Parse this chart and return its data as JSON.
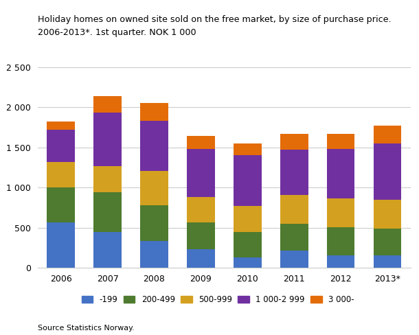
{
  "years": [
    "2006",
    "2007",
    "2008",
    "2009",
    "2010",
    "2011",
    "2012",
    "2013*"
  ],
  "series": {
    "-199": [
      570,
      450,
      340,
      230,
      130,
      220,
      160,
      160
    ],
    "200-499": [
      430,
      490,
      440,
      340,
      320,
      330,
      350,
      330
    ],
    "500-999": [
      320,
      330,
      430,
      310,
      320,
      360,
      360,
      360
    ],
    "1 000-2 999": [
      400,
      660,
      620,
      600,
      630,
      560,
      610,
      700
    ],
    "3 000-": [
      100,
      210,
      220,
      160,
      150,
      200,
      185,
      220
    ]
  },
  "colors": {
    "-199": "#4472C4",
    "200-499": "#4E7B2F",
    "500-999": "#D4A020",
    "1 000-2 999": "#7030A0",
    "3 000-": "#E36C09"
  },
  "title_line1": "Holiday homes on owned site sold on the free market, by size of purchase price.",
  "title_line2": "2006-2013*. 1st quarter. NOK 1 000",
  "ylim": [
    0,
    2500
  ],
  "yticks": [
    0,
    500,
    1000,
    1500,
    2000,
    2500
  ],
  "source": "Source Statistics Norway.",
  "legend_order": [
    "-199",
    "200-499",
    "500-999",
    "1 000-2 999",
    "3 000-"
  ]
}
